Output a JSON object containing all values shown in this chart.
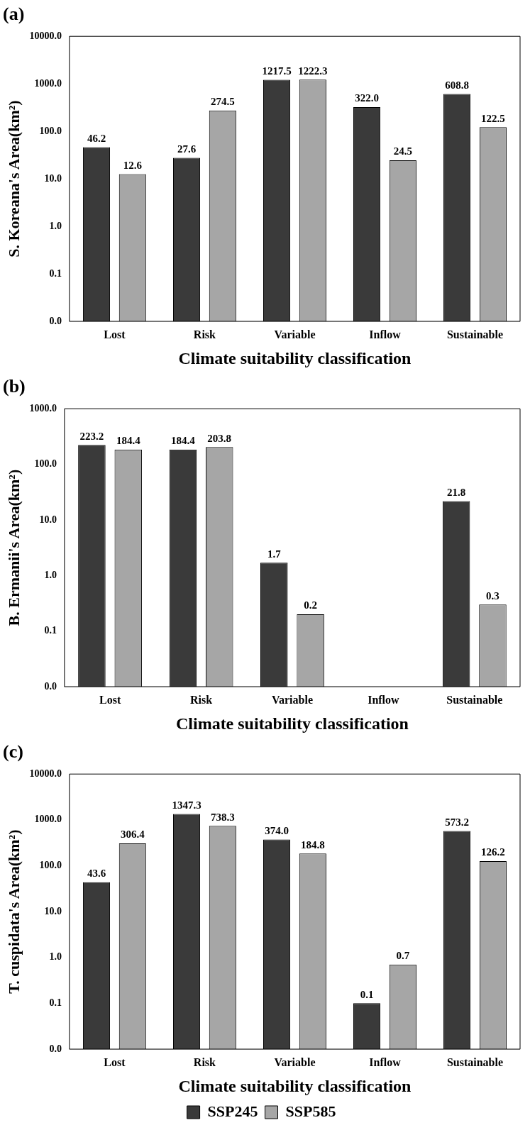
{
  "chart_data": [
    {
      "type": "bar",
      "title": "(a)",
      "xlabel": "Climate suitability classification",
      "ylabel": "S. Koreana's Area(km²)",
      "categories": [
        "Lost",
        "Risk",
        "Variable",
        "Inflow",
        "Sustainable"
      ],
      "log": "y",
      "grid": false,
      "legend": false,
      "ylim": [
        0.01,
        10000
      ],
      "yticks": [
        {
          "value": 0.01,
          "label": "0.0"
        },
        {
          "value": 0.1,
          "label": "0.1"
        },
        {
          "value": 1,
          "label": "1.0"
        },
        {
          "value": 10,
          "label": "10.0"
        },
        {
          "value": 100,
          "label": "100.0"
        },
        {
          "value": 1000,
          "label": "1000.0"
        },
        {
          "value": 10000,
          "label": "10000.0"
        }
      ],
      "series": [
        {
          "color": "#3a3a3a",
          "values": [
            46.2,
            27.6,
            1217.5,
            322.0,
            608.8
          ],
          "value_labels": [
            "46.2",
            "27.6",
            "1217.5",
            "322.0",
            "608.8"
          ]
        },
        {
          "color": "#a6a6a6",
          "values": [
            12.6,
            274.5,
            1222.3,
            24.5,
            122.5
          ],
          "value_labels": [
            "12.6",
            "274.5",
            "1222.3",
            "24.5",
            "122.5"
          ]
        }
      ]
    },
    {
      "type": "bar",
      "title": "(b)",
      "xlabel": "Climate suitability classification",
      "ylabel": "B. Ermanii's Area(km²)",
      "categories": [
        "Lost",
        "Risk",
        "Variable",
        "Inflow",
        "Sustainable"
      ],
      "log": "y",
      "grid": false,
      "legend": false,
      "ylim": [
        0.01,
        1000
      ],
      "yticks": [
        {
          "value": 0.01,
          "label": "0.0"
        },
        {
          "value": 0.1,
          "label": "0.1"
        },
        {
          "value": 1,
          "label": "1.0"
        },
        {
          "value": 10,
          "label": "10.0"
        },
        {
          "value": 100,
          "label": "100.0"
        },
        {
          "value": 1000,
          "label": "1000.0"
        }
      ],
      "series": [
        {
          "color": "#3a3a3a",
          "values": [
            223.2,
            184.4,
            1.7,
            null,
            21.8
          ],
          "value_labels": [
            "223.2",
            "184.4",
            "1.7",
            null,
            "21.8"
          ]
        },
        {
          "color": "#a6a6a6",
          "values": [
            184.4,
            203.8,
            0.2,
            null,
            0.3
          ],
          "value_labels": [
            "184.4",
            "203.8",
            "0.2",
            null,
            "0.3"
          ]
        }
      ]
    },
    {
      "type": "bar",
      "title": "(c)",
      "xlabel": "Climate suitability classification",
      "ylabel": "T. cuspidata's Area(km²)",
      "categories": [
        "Lost",
        "Risk",
        "Variable",
        "Inflow",
        "Sustainable"
      ],
      "log": "y",
      "grid": false,
      "legend": "bottom",
      "ylim": [
        0.01,
        10000
      ],
      "yticks": [
        {
          "value": 0.01,
          "label": "0.0"
        },
        {
          "value": 0.1,
          "label": "0.1"
        },
        {
          "value": 1,
          "label": "1.0"
        },
        {
          "value": 10,
          "label": "10.0"
        },
        {
          "value": 100,
          "label": "100.0"
        },
        {
          "value": 1000,
          "label": "1000.0"
        },
        {
          "value": 10000,
          "label": "10000.0"
        }
      ],
      "series": [
        {
          "name": "SSP245",
          "color": "#3a3a3a",
          "values": [
            43.6,
            1347.3,
            374.0,
            0.1,
            573.2
          ],
          "value_labels": [
            "43.6",
            "1347.3",
            "374.0",
            "0.1",
            "573.2"
          ]
        },
        {
          "name": "SSP585",
          "color": "#a6a6a6",
          "values": [
            306.4,
            738.3,
            184.8,
            0.7,
            126.2
          ],
          "value_labels": [
            "306.4",
            "738.3",
            "184.8",
            "0.7",
            "126.2"
          ]
        }
      ]
    }
  ]
}
